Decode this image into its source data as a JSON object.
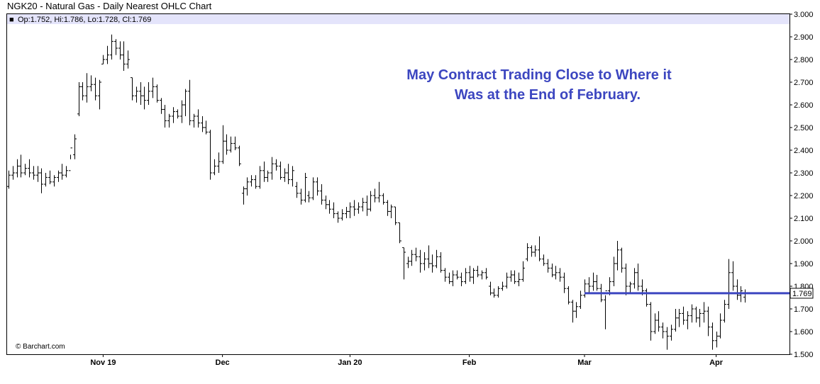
{
  "chart_data": {
    "type": "ohlc",
    "title": "NGK20 - Natural Gas - Daily Nearest OHLC Chart",
    "legend": {
      "symbol": "■",
      "text": "Op:1.752, Hi:1.786, Lo:1.728, Cl:1.769"
    },
    "annotation": {
      "line1": "May Contract Trading Close to Where it",
      "line2": "Was at the End of February."
    },
    "credit": "© Barchart.com",
    "ylim": [
      1.5,
      3.0
    ],
    "yticks": [
      "3.000",
      "2.900",
      "2.800",
      "2.700",
      "2.600",
      "2.500",
      "2.400",
      "2.300",
      "2.200",
      "2.100",
      "2.000",
      "1.900",
      "1.800",
      "1.700",
      "1.600",
      "1.500"
    ],
    "xticks": [
      {
        "label": "Nov 19",
        "index": 23
      },
      {
        "label": "Dec",
        "index": 52
      },
      {
        "label": "Jan 20",
        "index": 83
      },
      {
        "label": "Feb",
        "index": 112
      },
      {
        "label": "Mar",
        "index": 140
      },
      {
        "label": "Apr",
        "index": 172
      }
    ],
    "last_price": "1.769",
    "reference_line": {
      "value": 1.769,
      "start_index": 140
    },
    "colors": {
      "bars": "#000000",
      "reference_line": "#3c46c0",
      "annotation": "#3c46c0",
      "legend_band": "#e4e4fb"
    },
    "grid": false,
    "bars": [
      [
        2.24,
        2.31,
        2.23,
        2.29
      ],
      [
        2.29,
        2.33,
        2.27,
        2.3
      ],
      [
        2.3,
        2.36,
        2.28,
        2.33
      ],
      [
        2.33,
        2.38,
        2.28,
        2.3
      ],
      [
        2.3,
        2.34,
        2.29,
        2.32
      ],
      [
        2.32,
        2.36,
        2.28,
        2.3
      ],
      [
        2.3,
        2.33,
        2.27,
        2.29
      ],
      [
        2.29,
        2.33,
        2.26,
        2.3
      ],
      [
        2.3,
        2.32,
        2.21,
        2.25
      ],
      [
        2.25,
        2.3,
        2.24,
        2.28
      ],
      [
        2.28,
        2.31,
        2.25,
        2.26
      ],
      [
        2.26,
        2.29,
        2.24,
        2.28
      ],
      [
        2.28,
        2.31,
        2.26,
        2.3
      ],
      [
        2.3,
        2.34,
        2.27,
        2.29
      ],
      [
        2.29,
        2.33,
        2.28,
        2.31
      ],
      [
        2.31,
        2.38,
        2.36,
        2.41
      ],
      [
        2.38,
        2.47,
        2.36,
        2.45
      ],
      [
        2.56,
        2.7,
        2.55,
        2.68
      ],
      [
        2.68,
        2.7,
        2.62,
        2.64
      ],
      [
        2.64,
        2.74,
        2.61,
        2.68
      ],
      [
        2.68,
        2.73,
        2.66,
        2.69
      ],
      [
        2.69,
        2.72,
        2.62,
        2.64
      ],
      [
        2.64,
        2.71,
        2.58,
        2.7
      ],
      [
        2.78,
        2.82,
        2.78,
        2.8
      ],
      [
        2.8,
        2.86,
        2.78,
        2.82
      ],
      [
        2.82,
        2.91,
        2.8,
        2.88
      ],
      [
        2.88,
        2.89,
        2.82,
        2.85
      ],
      [
        2.85,
        2.88,
        2.8,
        2.82
      ],
      [
        2.82,
        2.88,
        2.75,
        2.78
      ],
      [
        2.78,
        2.84,
        2.76,
        2.8
      ],
      [
        2.72,
        2.72,
        2.62,
        2.64
      ],
      [
        2.64,
        2.68,
        2.61,
        2.66
      ],
      [
        2.66,
        2.7,
        2.6,
        2.64
      ],
      [
        2.64,
        2.68,
        2.58,
        2.62
      ],
      [
        2.62,
        2.7,
        2.6,
        2.66
      ],
      [
        2.66,
        2.72,
        2.63,
        2.68
      ],
      [
        2.68,
        2.69,
        2.61,
        2.62
      ],
      [
        2.62,
        2.63,
        2.56,
        2.58
      ],
      [
        2.58,
        2.6,
        2.5,
        2.53
      ],
      [
        2.53,
        2.56,
        2.5,
        2.55
      ],
      [
        2.55,
        2.59,
        2.52,
        2.57
      ],
      [
        2.57,
        2.58,
        2.54,
        2.55
      ],
      [
        2.55,
        2.62,
        2.52,
        2.6
      ],
      [
        2.6,
        2.67,
        2.55,
        2.66
      ],
      [
        2.66,
        2.71,
        2.51,
        2.53
      ],
      [
        2.53,
        2.56,
        2.5,
        2.55
      ],
      [
        2.55,
        2.58,
        2.5,
        2.52
      ],
      [
        2.52,
        2.55,
        2.48,
        2.5
      ],
      [
        2.5,
        2.53,
        2.47,
        2.48
      ],
      [
        2.48,
        2.49,
        2.27,
        2.3
      ],
      [
        2.3,
        2.36,
        2.29,
        2.33
      ],
      [
        2.33,
        2.39,
        2.3,
        2.35
      ],
      [
        2.35,
        2.51,
        2.34,
        2.44
      ],
      [
        2.44,
        2.47,
        2.38,
        2.4
      ],
      [
        2.4,
        2.46,
        2.39,
        2.43
      ],
      [
        2.43,
        2.46,
        2.4,
        2.41
      ],
      [
        2.41,
        2.42,
        2.33,
        2.34
      ],
      [
        2.21,
        2.24,
        2.16,
        2.23
      ],
      [
        2.23,
        2.28,
        2.2,
        2.26
      ],
      [
        2.26,
        2.29,
        2.24,
        2.27
      ],
      [
        2.27,
        2.29,
        2.23,
        2.24
      ],
      [
        2.24,
        2.33,
        2.23,
        2.31
      ],
      [
        2.31,
        2.35,
        2.26,
        2.28
      ],
      [
        2.28,
        2.31,
        2.26,
        2.3
      ],
      [
        2.3,
        2.37,
        2.27,
        2.34
      ],
      [
        2.34,
        2.36,
        2.31,
        2.33
      ],
      [
        2.33,
        2.35,
        2.27,
        2.28
      ],
      [
        2.28,
        2.32,
        2.26,
        2.3
      ],
      [
        2.3,
        2.34,
        2.25,
        2.27
      ],
      [
        2.27,
        2.33,
        2.24,
        2.31
      ],
      [
        2.24,
        2.26,
        2.19,
        2.21
      ],
      [
        2.21,
        2.23,
        2.16,
        2.18
      ],
      [
        2.18,
        2.3,
        2.17,
        2.28
      ],
      [
        2.2,
        2.22,
        2.17,
        2.19
      ],
      [
        2.19,
        2.28,
        2.18,
        2.26
      ],
      [
        2.26,
        2.28,
        2.2,
        2.22
      ],
      [
        2.22,
        2.25,
        2.16,
        2.18
      ],
      [
        2.18,
        2.2,
        2.14,
        2.16
      ],
      [
        2.16,
        2.18,
        2.12,
        2.14
      ],
      [
        2.14,
        2.17,
        2.1,
        2.12
      ],
      [
        2.12,
        2.13,
        2.08,
        2.1
      ],
      [
        2.1,
        2.14,
        2.09,
        2.12
      ],
      [
        2.12,
        2.15,
        2.1,
        2.13
      ],
      [
        2.13,
        2.17,
        2.1,
        2.15
      ],
      [
        2.15,
        2.18,
        2.11,
        2.14
      ],
      [
        2.14,
        2.17,
        2.12,
        2.15
      ],
      [
        2.15,
        2.19,
        2.13,
        2.17
      ],
      [
        2.17,
        2.2,
        2.11,
        2.14
      ],
      [
        2.14,
        2.22,
        2.13,
        2.2
      ],
      [
        2.2,
        2.23,
        2.17,
        2.19
      ],
      [
        2.19,
        2.26,
        2.17,
        2.2
      ],
      [
        2.2,
        2.21,
        2.16,
        2.17
      ],
      [
        2.17,
        2.18,
        2.11,
        2.13
      ],
      [
        2.13,
        2.16,
        2.1,
        2.15
      ],
      [
        2.15,
        2.15,
        2.07,
        2.08
      ],
      [
        2.08,
        2.08,
        1.99,
        2.0
      ],
      [
        1.97,
        1.97,
        1.83,
        1.95
      ],
      [
        1.9,
        1.93,
        1.88,
        1.91
      ],
      [
        1.91,
        1.96,
        1.89,
        1.94
      ],
      [
        1.94,
        1.97,
        1.91,
        1.93
      ],
      [
        1.93,
        1.96,
        1.86,
        1.9
      ],
      [
        1.9,
        1.95,
        1.87,
        1.92
      ],
      [
        1.92,
        1.98,
        1.88,
        1.9
      ],
      [
        1.9,
        1.94,
        1.86,
        1.89
      ],
      [
        1.89,
        1.96,
        1.88,
        1.93
      ],
      [
        1.93,
        1.95,
        1.86,
        1.87
      ],
      [
        1.87,
        1.88,
        1.82,
        1.84
      ],
      [
        1.84,
        1.86,
        1.81,
        1.82
      ],
      [
        1.82,
        1.87,
        1.8,
        1.85
      ],
      [
        1.85,
        1.87,
        1.83,
        1.84
      ],
      [
        1.84,
        1.86,
        1.8,
        1.82
      ],
      [
        1.82,
        1.88,
        1.81,
        1.86
      ],
      [
        1.86,
        1.89,
        1.82,
        1.84
      ],
      [
        1.84,
        1.88,
        1.81,
        1.87
      ],
      [
        1.87,
        1.89,
        1.84,
        1.85
      ],
      [
        1.85,
        1.87,
        1.83,
        1.86
      ],
      [
        1.86,
        1.88,
        1.83,
        1.84
      ],
      [
        1.8,
        1.82,
        1.76,
        1.77
      ],
      [
        1.77,
        1.79,
        1.75,
        1.76
      ],
      [
        1.76,
        1.8,
        1.75,
        1.79
      ],
      [
        1.79,
        1.82,
        1.78,
        1.8
      ],
      [
        1.8,
        1.86,
        1.79,
        1.84
      ],
      [
        1.84,
        1.87,
        1.82,
        1.85
      ],
      [
        1.85,
        1.87,
        1.81,
        1.82
      ],
      [
        1.82,
        1.86,
        1.8,
        1.83
      ],
      [
        1.83,
        1.91,
        1.82,
        1.88
      ],
      [
        1.92,
        1.99,
        1.91,
        1.97
      ],
      [
        1.97,
        1.98,
        1.93,
        1.95
      ],
      [
        1.95,
        1.98,
        1.93,
        1.96
      ],
      [
        1.96,
        2.02,
        1.91,
        1.92
      ],
      [
        1.92,
        1.94,
        1.89,
        1.9
      ],
      [
        1.9,
        1.92,
        1.86,
        1.88
      ],
      [
        1.88,
        1.9,
        1.84,
        1.85
      ],
      [
        1.85,
        1.89,
        1.83,
        1.86
      ],
      [
        1.86,
        1.88,
        1.82,
        1.84
      ],
      [
        1.84,
        1.86,
        1.77,
        1.79
      ],
      [
        1.79,
        1.8,
        1.72,
        1.73
      ],
      [
        1.73,
        1.74,
        1.64,
        1.69
      ],
      [
        1.69,
        1.73,
        1.66,
        1.71
      ],
      [
        1.71,
        1.78,
        1.7,
        1.76
      ],
      [
        1.76,
        1.83,
        1.75,
        1.81
      ],
      [
        1.81,
        1.84,
        1.77,
        1.8
      ],
      [
        1.8,
        1.86,
        1.78,
        1.82
      ],
      [
        1.82,
        1.85,
        1.78,
        1.79
      ],
      [
        1.79,
        1.81,
        1.73,
        1.74
      ],
      [
        1.74,
        1.76,
        1.61,
        1.78
      ],
      [
        1.78,
        1.84,
        1.76,
        1.82
      ],
      [
        1.82,
        1.93,
        1.8,
        1.9
      ],
      [
        1.9,
        2.0,
        1.87,
        1.96
      ],
      [
        1.96,
        1.97,
        1.86,
        1.88
      ],
      [
        1.88,
        1.9,
        1.76,
        1.8
      ],
      [
        1.8,
        1.82,
        1.77,
        1.81
      ],
      [
        1.81,
        1.88,
        1.79,
        1.86
      ],
      [
        1.86,
        1.9,
        1.78,
        1.8
      ],
      [
        1.8,
        1.83,
        1.76,
        1.78
      ],
      [
        1.78,
        1.79,
        1.71,
        1.72
      ],
      [
        1.72,
        1.73,
        1.56,
        1.6
      ],
      [
        1.6,
        1.68,
        1.59,
        1.65
      ],
      [
        1.65,
        1.69,
        1.6,
        1.62
      ],
      [
        1.62,
        1.64,
        1.57,
        1.6
      ],
      [
        1.6,
        1.62,
        1.52,
        1.58
      ],
      [
        1.58,
        1.63,
        1.56,
        1.61
      ],
      [
        1.61,
        1.7,
        1.6,
        1.66
      ],
      [
        1.66,
        1.7,
        1.62,
        1.68
      ],
      [
        1.68,
        1.71,
        1.63,
        1.65
      ],
      [
        1.65,
        1.69,
        1.61,
        1.67
      ],
      [
        1.67,
        1.72,
        1.64,
        1.7
      ],
      [
        1.7,
        1.71,
        1.64,
        1.66
      ],
      [
        1.66,
        1.7,
        1.62,
        1.68
      ],
      [
        1.68,
        1.73,
        1.64,
        1.69
      ],
      [
        1.69,
        1.71,
        1.58,
        1.62
      ],
      [
        1.62,
        1.64,
        1.52,
        1.56
      ],
      [
        1.56,
        1.6,
        1.53,
        1.58
      ],
      [
        1.58,
        1.68,
        1.57,
        1.65
      ],
      [
        1.65,
        1.74,
        1.64,
        1.72
      ],
      [
        1.72,
        1.92,
        1.7,
        1.86
      ],
      [
        1.86,
        1.91,
        1.78,
        1.8
      ],
      [
        1.8,
        1.83,
        1.74,
        1.76
      ],
      [
        1.76,
        1.8,
        1.73,
        1.78
      ],
      [
        1.752,
        1.786,
        1.728,
        1.769
      ]
    ]
  }
}
